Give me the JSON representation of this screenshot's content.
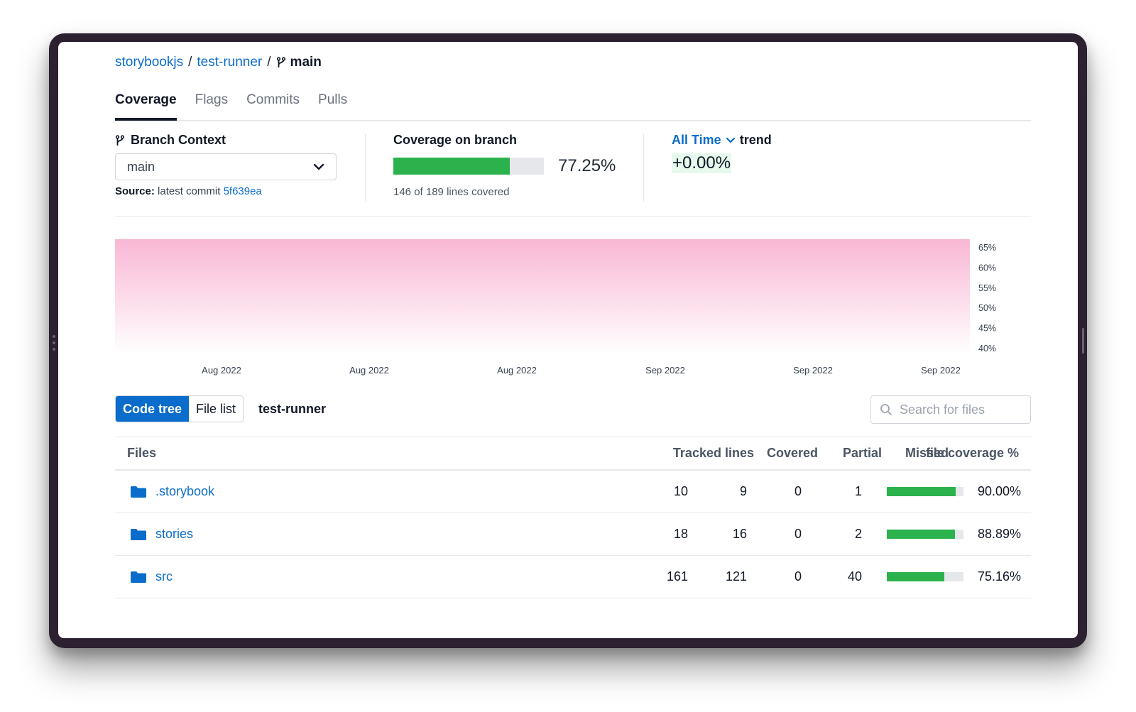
{
  "breadcrumb": {
    "org": "storybookjs",
    "repo": "test-runner",
    "branch": "main",
    "separator": "/"
  },
  "tabs": [
    {
      "label": "Coverage",
      "active": true
    },
    {
      "label": "Flags",
      "active": false
    },
    {
      "label": "Commits",
      "active": false
    },
    {
      "label": "Pulls",
      "active": false
    }
  ],
  "branch_context": {
    "title": "Branch Context",
    "selected": "main",
    "source_label": "Source:",
    "source_text": "latest commit",
    "commit": "5f639ea"
  },
  "coverage": {
    "title": "Coverage on branch",
    "percent_text": "77.25%",
    "percent": 77.25,
    "lines_text": "146 of 189 lines covered"
  },
  "trend": {
    "range": "All Time",
    "label": "trend",
    "value": "+0.00%"
  },
  "chart_data": {
    "type": "area",
    "x_ticks": [
      "Aug 2022",
      "Aug 2022",
      "Aug 2022",
      "Sep 2022",
      "Sep 2022",
      "Sep 2022"
    ],
    "y_ticks": [
      "65%",
      "60%",
      "55%",
      "50%",
      "45%",
      "40%"
    ],
    "y_values": [
      65,
      60,
      55,
      50,
      45,
      40
    ],
    "series": [
      {
        "color": "#f9b7d4"
      }
    ]
  },
  "toolbar": {
    "code_tree": "Code tree",
    "file_list": "File list",
    "directory": "test-runner",
    "search_placeholder": "Search for files"
  },
  "table": {
    "headers": {
      "files": "Files",
      "tracked": "Tracked lines",
      "covered": "Covered",
      "partial": "Partial",
      "missed": "Missed",
      "file_coverage": "file coverage %"
    },
    "rows": [
      {
        "name": ".storybook",
        "tracked": "10",
        "covered": "9",
        "partial": "0",
        "missed": "1",
        "pct_text": "90.00%",
        "pct": 90.0
      },
      {
        "name": "stories",
        "tracked": "18",
        "covered": "16",
        "partial": "0",
        "missed": "2",
        "pct_text": "88.89%",
        "pct": 88.89
      },
      {
        "name": "src",
        "tracked": "161",
        "covered": "121",
        "partial": "0",
        "missed": "40",
        "pct_text": "75.16%",
        "pct": 75.16
      }
    ]
  },
  "colors": {
    "accent": "#0a6ccb",
    "coverage_fill": "#2bb24c",
    "trend_bg": "#e6f9ec",
    "chart_area": "#f9b7d4"
  }
}
